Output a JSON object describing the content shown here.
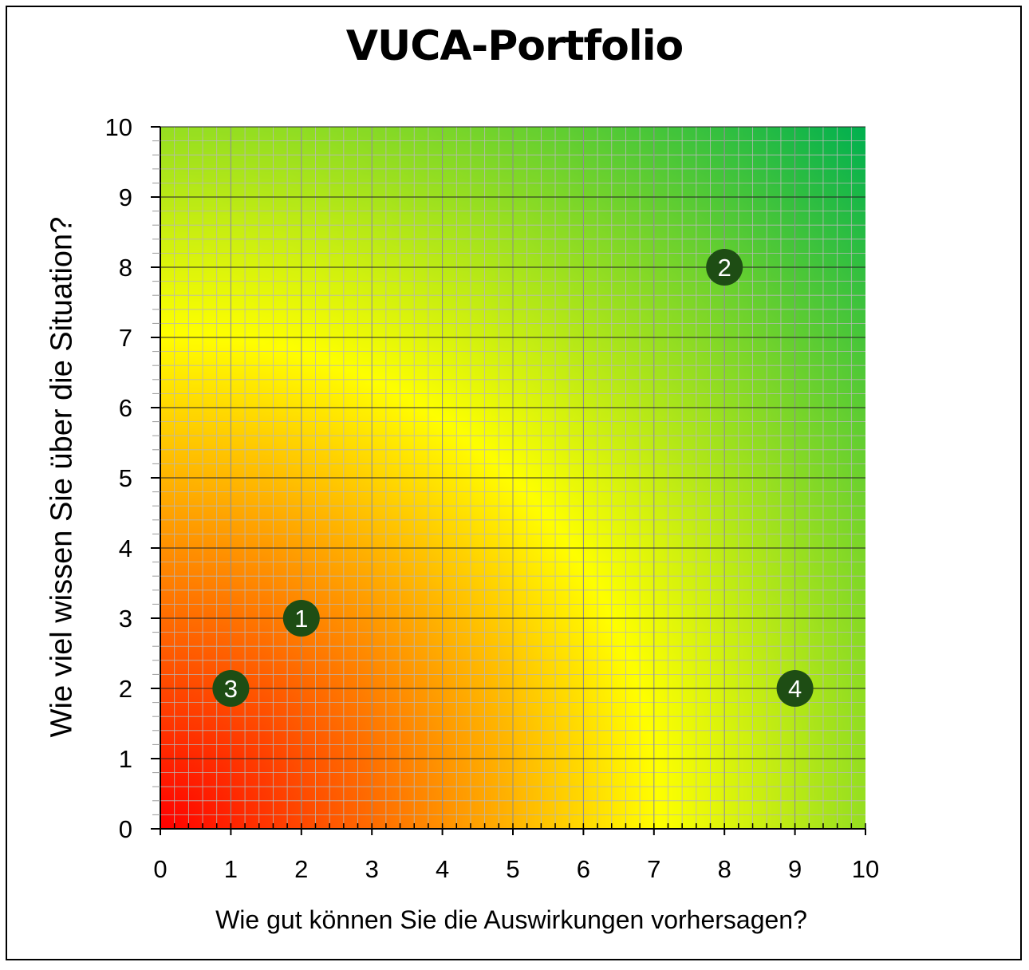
{
  "chart_data": {
    "type": "scatter",
    "title": "VUCA-Portfolio",
    "xlabel": "Wie gut können Sie die Auswirkungen vorhersagen?",
    "ylabel": "Wie viel wissen Sie über die Situation?",
    "xlim": [
      0,
      10
    ],
    "ylim": [
      0,
      10
    ],
    "x_ticks": [
      "0",
      "1",
      "2",
      "3",
      "4",
      "5",
      "6",
      "7",
      "8",
      "9",
      "10"
    ],
    "y_ticks": [
      "0",
      "1",
      "2",
      "3",
      "4",
      "5",
      "6",
      "7",
      "8",
      "9",
      "10"
    ],
    "grid": true,
    "background": "gradient red (low) to yellow to green (high)",
    "points": [
      {
        "label": "1",
        "x": 2,
        "y": 3
      },
      {
        "label": "2",
        "x": 8,
        "y": 8
      },
      {
        "label": "3",
        "x": 1,
        "y": 2
      },
      {
        "label": "4",
        "x": 9,
        "y": 2
      }
    ],
    "colors": {
      "point_fill": "#1e4d14",
      "point_text": "#ffffff",
      "gradient_low": "#ff0000",
      "gradient_mid": "#ffff00",
      "gradient_high": "#00b050"
    }
  }
}
